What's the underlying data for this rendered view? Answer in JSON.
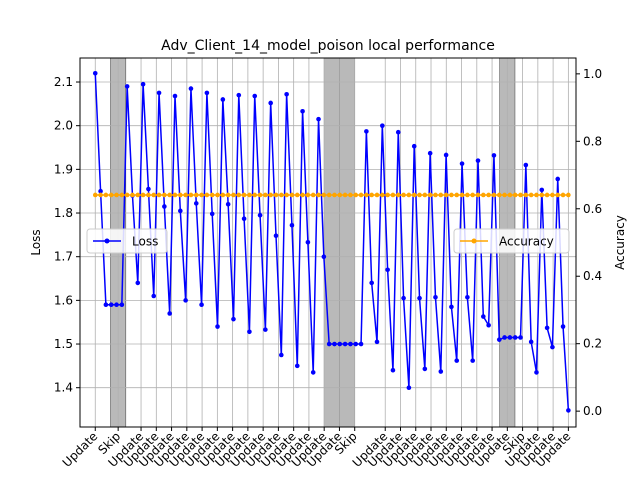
{
  "chart_data": {
    "type": "line",
    "title": "Adv_Client_14_model_poison local performance",
    "ylabel_left": "Loss",
    "ylabel_right": "Accuracy",
    "grid": true,
    "left_axis": {
      "ylim": [
        1.31,
        2.155
      ],
      "ticks": [
        1.4,
        1.5,
        1.6,
        1.7,
        1.8,
        1.9,
        2.0,
        2.1
      ]
    },
    "right_axis": {
      "ylim": [
        -0.047,
        1.047
      ],
      "ticks": [
        0.0,
        0.2,
        0.4,
        0.6,
        0.8,
        1.0
      ]
    },
    "xlim": [
      -2.0,
      63.0
    ],
    "x_tick_positions": [
      0,
      3,
      6,
      8,
      10,
      12,
      14,
      16,
      18,
      20,
      22,
      24,
      26,
      28,
      30,
      32,
      34,
      38,
      40,
      42,
      44,
      46,
      48,
      50,
      52,
      54,
      56,
      58,
      60,
      62
    ],
    "x_tick_labels": [
      "Update",
      "Skip",
      "Update",
      "Update",
      "Update",
      "Update",
      "Update",
      "Update",
      "Update",
      "Update",
      "Update",
      "Update",
      "Update",
      "Update",
      "Update",
      "Update",
      "Skip",
      "Update",
      "Update",
      "Update",
      "Update",
      "Update",
      "Update",
      "Update",
      "Update",
      "Update",
      "Skip",
      "Update",
      "Update",
      "Update"
    ],
    "skip_regions": [
      [
        2,
        4
      ],
      [
        30,
        32
      ],
      [
        32,
        34
      ],
      [
        53,
        55
      ]
    ],
    "legend": {
      "loss": {
        "label": "Loss",
        "placement": "center-left"
      },
      "accuracy": {
        "label": "Accuracy",
        "placement": "center-right"
      }
    },
    "series": [
      {
        "name": "Loss",
        "axis": "left",
        "color": "#0000ff",
        "values": [
          2.12,
          1.85,
          1.59,
          1.59,
          1.59,
          1.59,
          2.09,
          1.84,
          1.64,
          2.095,
          1.855,
          1.61,
          2.075,
          1.815,
          1.57,
          2.068,
          1.805,
          1.6,
          2.085,
          1.822,
          1.59,
          2.075,
          1.798,
          1.54,
          2.06,
          1.82,
          1.557,
          2.07,
          1.787,
          1.528,
          2.068,
          1.795,
          1.533,
          2.052,
          1.748,
          1.475,
          2.072,
          1.772,
          1.45,
          2.033,
          1.733,
          1.435,
          2.015,
          1.7,
          1.5,
          1.5,
          1.5,
          1.5,
          1.5,
          1.5,
          1.5,
          1.987,
          1.64,
          1.505,
          2.0,
          1.67,
          1.44,
          1.985,
          1.605,
          1.4,
          1.953,
          1.605,
          1.443,
          1.937,
          1.607,
          1.437,
          1.933,
          1.585,
          1.462,
          1.913,
          1.607,
          1.462,
          1.92,
          1.563,
          1.543,
          1.932,
          1.51,
          1.515,
          1.515,
          1.515,
          1.515,
          1.91,
          1.505,
          1.435,
          1.853,
          1.537,
          1.493,
          1.878,
          1.54,
          1.348
        ]
      },
      {
        "name": "Accuracy",
        "axis": "right",
        "color": "#ffa500",
        "constant_value": 0.641
      }
    ]
  }
}
